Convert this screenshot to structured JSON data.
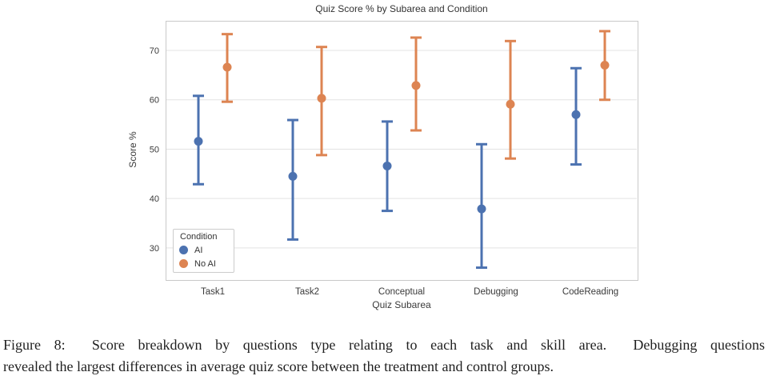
{
  "chart_data": {
    "type": "scatter",
    "subtype": "pointplot-with-error-bars",
    "title": "Quiz Score % by Subarea and Condition",
    "xlabel": "Quiz Subarea",
    "ylabel": "Score %",
    "categories": [
      "Task1",
      "Task2",
      "Conceptual",
      "Debugging",
      "CodeReading"
    ],
    "series": [
      {
        "name": "AI",
        "color": "#4C72B0",
        "values": [
          51.6,
          44.5,
          46.6,
          37.9,
          57.0
        ],
        "ci_low": [
          42.9,
          31.7,
          37.5,
          26.0,
          46.9
        ],
        "ci_high": [
          60.8,
          55.9,
          55.6,
          51.0,
          66.4
        ]
      },
      {
        "name": "No AI",
        "color": "#DD8452",
        "values": [
          66.6,
          60.3,
          62.9,
          59.1,
          67.0
        ],
        "ci_low": [
          59.6,
          48.8,
          53.8,
          48.1,
          60.0
        ],
        "ci_high": [
          73.3,
          70.7,
          72.6,
          71.9,
          73.9
        ]
      }
    ],
    "yticks": [
      30,
      40,
      50,
      60,
      70
    ],
    "ylim": [
      23.5,
      76
    ],
    "grid": "horizontal",
    "grid_color": "#e3e3e3",
    "border_color": "#c9c9c9",
    "tick_color": "#3a3a3a",
    "legend": {
      "title": "Condition",
      "position": "lower left"
    }
  },
  "figure": {
    "caption_line1": "Figure 8:  Score breakdown by questions type relating to each task and skill area.  Debugging questions",
    "caption_line2": "revealed the largest differences in average quiz score between the treatment and control groups."
  }
}
